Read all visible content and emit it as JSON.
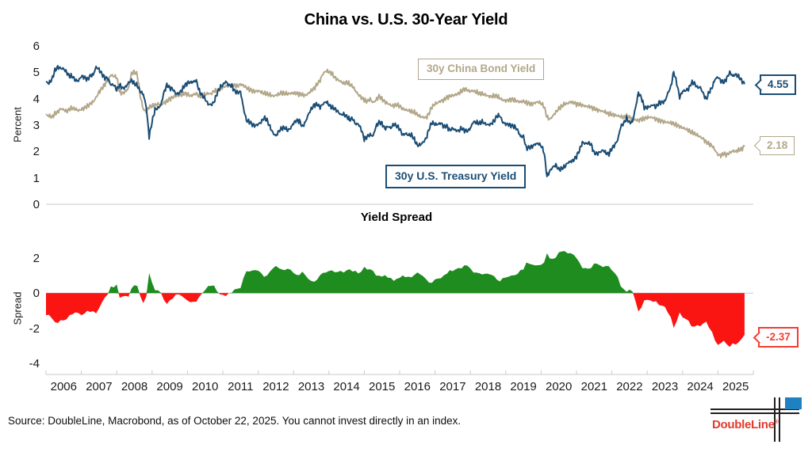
{
  "title": "China vs. U.S. 30-Year Yield",
  "top_panel": {
    "ylabel": "Percent",
    "yticks": [
      "6",
      "5",
      "4",
      "3",
      "2",
      "1",
      "0"
    ],
    "legend_china": "30y China Bond Yield",
    "legend_us": "30y U.S. Treasury Yield",
    "callout_us": "4.55",
    "callout_china": "2.18"
  },
  "bottom_panel": {
    "title": "Yield Spread",
    "ylabel": "Spread",
    "yticks": [
      "2",
      "0",
      "-2",
      "-4"
    ],
    "callout_spread": "-2.37"
  },
  "x_axis": {
    "years": [
      "2006",
      "2007",
      "2008",
      "2009",
      "2010",
      "2011",
      "2012",
      "2013",
      "2014",
      "2015",
      "2016",
      "2017",
      "2018",
      "2019",
      "2020",
      "2021",
      "2022",
      "2023",
      "2024",
      "2025"
    ]
  },
  "source": "Source: DoubleLine, Macrobond, as of October 22, 2025. You cannot invest directly in an index.",
  "logo": {
    "name": "DoubleLine",
    "reg": "®"
  },
  "colors": {
    "us_blue": "#1b4d74",
    "china_tan": "#b3a78a",
    "spread_green": "#1e8c1e",
    "spread_red": "#fa1412",
    "callout_red": "#f23d33",
    "axis_line": "#c9c9c9",
    "text": "#1a1a1a"
  },
  "chart_data": {
    "type": "line",
    "title": "China vs. U.S. 30-Year Yield",
    "x_start_year": 2006,
    "x_interval": "monthly",
    "x_range": [
      2006.0,
      2025.79
    ],
    "panels": [
      {
        "ylabel": "Percent",
        "ylim": [
          0,
          6
        ],
        "yticks": [
          0,
          1,
          2,
          3,
          4,
          5,
          6
        ],
        "series": [
          {
            "name": "30y U.S. Treasury Yield",
            "end_value": 4.55,
            "values": [
              4.63,
              4.58,
              4.73,
              5.06,
              5.2,
              5.15,
              5.13,
              5.0,
              4.85,
              4.85,
              4.69,
              4.68,
              4.85,
              4.82,
              4.72,
              4.87,
              4.9,
              5.2,
              5.11,
              4.93,
              4.79,
              4.77,
              4.52,
              4.53,
              4.33,
              4.52,
              4.39,
              4.44,
              4.6,
              4.69,
              4.57,
              4.5,
              4.27,
              4.17,
              3.71,
              2.56,
              3.13,
              3.59,
              3.64,
              3.76,
              4.23,
              4.52,
              4.41,
              4.37,
              4.19,
              4.19,
              4.31,
              4.49,
              4.6,
              4.62,
              4.64,
              4.69,
              4.29,
              4.13,
              3.99,
              3.8,
              3.77,
              3.87,
              4.19,
              4.42,
              4.52,
              4.65,
              4.51,
              4.5,
              4.29,
              4.23,
              4.27,
              3.65,
              3.18,
              3.13,
              3.02,
              2.98,
              3.03,
              3.11,
              3.28,
              3.18,
              2.93,
              2.7,
              2.59,
              2.77,
              2.88,
              2.9,
              2.8,
              2.88,
              3.08,
              3.17,
              3.16,
              2.93,
              3.11,
              3.4,
              3.61,
              3.76,
              3.79,
              3.68,
              3.8,
              3.89,
              3.77,
              3.66,
              3.62,
              3.52,
              3.39,
              3.42,
              3.33,
              3.2,
              3.26,
              3.04,
              3.04,
              2.83,
              2.46,
              2.57,
              2.63,
              2.59,
              2.96,
              3.11,
              3.07,
              2.86,
              2.95,
              2.89,
              3.03,
              2.97,
              2.86,
              2.62,
              2.68,
              2.62,
              2.63,
              2.45,
              2.23,
              2.26,
              2.35,
              2.5,
              2.86,
              3.11,
              3.02,
              3.03,
              3.08,
              2.94,
              2.96,
              2.8,
              2.88,
              2.8,
              2.78,
              2.88,
              2.8,
              2.77,
              2.88,
              3.13,
              3.09,
              3.07,
              3.13,
              3.05,
              3.01,
              3.04,
              3.15,
              3.34,
              3.36,
              3.1,
              3.04,
              3.02,
              2.98,
              2.94,
              2.82,
              2.57,
              2.57,
              2.12,
              2.16,
              2.19,
              2.28,
              2.3,
              2.22,
              1.97,
              1.05,
              1.27,
              1.41,
              1.49,
              1.31,
              1.36,
              1.42,
              1.57,
              1.62,
              1.67,
              1.82,
              2.04,
              2.34,
              2.3,
              2.32,
              2.26,
              1.94,
              1.92,
              1.98,
              2.05,
              1.94,
              1.9,
              2.11,
              2.25,
              2.44,
              2.94,
              3.07,
              3.25,
              3.1,
              3.13,
              3.64,
              4.22,
              4.05,
              3.66,
              3.66,
              3.71,
              3.77,
              3.68,
              3.86,
              3.86,
              3.9,
              4.21,
              4.45,
              5.02,
              4.6,
              4.05,
              4.28,
              4.31,
              4.36,
              4.61,
              4.58,
              4.43,
              4.43,
              4.2,
              3.97,
              4.25,
              4.42,
              4.74,
              4.82,
              4.68,
              4.62,
              4.78,
              5.0,
              4.86,
              4.92,
              4.84,
              4.7,
              4.55
            ]
          },
          {
            "name": "30y China Bond Yield",
            "end_value": 2.18,
            "values": [
              3.38,
              3.35,
              3.3,
              3.42,
              3.5,
              3.62,
              3.58,
              3.52,
              3.6,
              3.65,
              3.6,
              3.55,
              3.6,
              3.65,
              3.72,
              3.8,
              3.88,
              4.05,
              4.25,
              4.4,
              4.55,
              4.7,
              4.9,
              4.85,
              4.82,
              4.25,
              4.2,
              4.28,
              4.4,
              4.95,
              5.02,
              4.9,
              4.1,
              3.6,
              3.5,
              3.7,
              3.72,
              3.75,
              3.8,
              3.78,
              3.85,
              3.9,
              4.0,
              4.05,
              4.1,
              4.12,
              4.15,
              4.2,
              4.18,
              4.1,
              4.15,
              4.2,
              4.08,
              4.12,
              4.16,
              4.2,
              4.18,
              4.3,
              4.3,
              4.35,
              4.42,
              4.48,
              4.5,
              4.52,
              4.5,
              4.48,
              4.55,
              4.5,
              4.42,
              4.35,
              4.3,
              4.28,
              4.3,
              4.25,
              4.2,
              4.18,
              4.15,
              4.1,
              4.13,
              4.18,
              4.22,
              4.2,
              4.18,
              4.2,
              4.22,
              4.2,
              4.18,
              4.15,
              4.12,
              4.2,
              4.3,
              4.4,
              4.55,
              4.7,
              4.95,
              5.05,
              5.02,
              4.95,
              4.8,
              4.72,
              4.65,
              4.58,
              4.62,
              4.55,
              4.48,
              4.3,
              4.15,
              4.05,
              3.95,
              3.9,
              3.98,
              3.85,
              3.95,
              4.1,
              4.0,
              3.88,
              3.82,
              3.75,
              3.72,
              3.78,
              3.72,
              3.62,
              3.58,
              3.55,
              3.52,
              3.48,
              3.4,
              3.32,
              3.3,
              3.28,
              3.45,
              3.7,
              3.8,
              3.85,
              3.92,
              3.95,
              4.05,
              4.1,
              4.12,
              4.15,
              4.2,
              4.28,
              4.38,
              4.32,
              4.28,
              4.3,
              4.25,
              4.2,
              4.18,
              4.15,
              4.1,
              4.08,
              4.12,
              4.1,
              4.02,
              3.95,
              3.92,
              3.95,
              3.98,
              3.95,
              3.9,
              3.88,
              3.9,
              3.85,
              3.82,
              3.8,
              3.85,
              3.88,
              3.82,
              3.7,
              3.3,
              3.22,
              3.35,
              3.5,
              3.62,
              3.72,
              3.8,
              3.82,
              3.88,
              3.85,
              3.8,
              3.78,
              3.75,
              3.72,
              3.7,
              3.68,
              3.62,
              3.58,
              3.55,
              3.52,
              3.48,
              3.42,
              3.4,
              3.38,
              3.35,
              3.32,
              3.3,
              3.32,
              3.3,
              3.22,
              3.2,
              3.18,
              3.22,
              3.25,
              3.28,
              3.3,
              3.28,
              3.22,
              3.18,
              3.15,
              3.12,
              3.1,
              3.08,
              3.05,
              3.0,
              2.95,
              2.9,
              2.85,
              2.8,
              2.72,
              2.68,
              2.62,
              2.55,
              2.48,
              2.35,
              2.28,
              2.22,
              2.05,
              1.88,
              1.85,
              1.92,
              1.88,
              1.95,
              2.02,
              2.0,
              2.05,
              2.1,
              2.18
            ]
          }
        ]
      },
      {
        "title": "Yield Spread",
        "type": "area",
        "ylabel": "Spread",
        "ylim": [
          -4.6,
          2.7
        ],
        "yticks": [
          2,
          0,
          -2,
          -4
        ],
        "definition": "spread = china - us (computed from the two series above)",
        "end_value": -2.37
      }
    ]
  }
}
